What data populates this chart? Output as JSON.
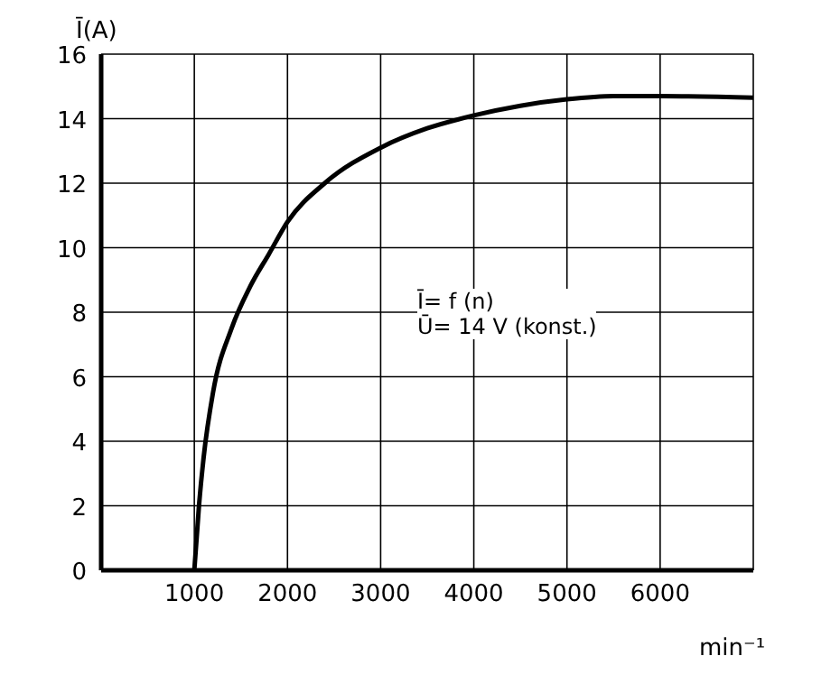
{
  "chart_data": {
    "type": "line",
    "ylabel": "Ī(A)",
    "xlabel": "min⁻¹",
    "annotations": [
      "Ī= f (n)",
      "Ū= 14 V (konst.)"
    ],
    "x": [
      1000,
      1050,
      1100,
      1200,
      1400,
      1600,
      1800,
      2000,
      2400,
      3000,
      3500,
      4000,
      4500,
      5000,
      5500,
      6000,
      7000
    ],
    "series": [
      {
        "color": "#000000",
        "values": [
          0,
          2,
          3.5,
          5.5,
          7.5,
          8.8,
          9.8,
          10.8,
          12,
          13.1,
          13.7,
          14.1,
          14.4,
          14.6,
          14.7,
          14.7,
          14.65
        ]
      }
    ],
    "xlim": [
      0,
      7000
    ],
    "xticks": [
      {
        "value": 0,
        "label": null
      },
      1000,
      2000,
      3000,
      4000,
      5000,
      6000,
      {
        "value": 7000,
        "label": null
      }
    ],
    "ylim": [
      0,
      16
    ],
    "yticks": [
      0,
      2,
      4,
      6,
      8,
      10,
      12,
      14,
      16
    ],
    "grid": true,
    "legend": false,
    "marker": "none",
    "line_style": "solid"
  }
}
